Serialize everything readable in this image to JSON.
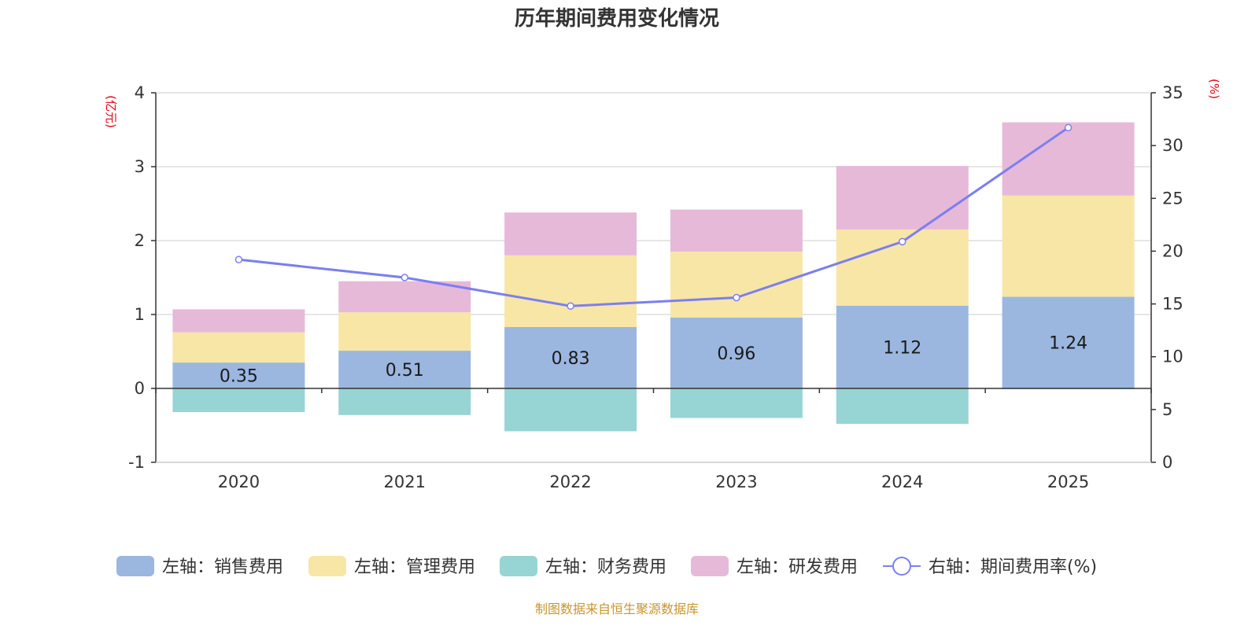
{
  "chart_data": {
    "type": "bar",
    "title": "历年期间费用变化情况",
    "categories": [
      "2020",
      "2021",
      "2022",
      "2023",
      "2024",
      "2025"
    ],
    "series": [
      {
        "name": "左轴：销售费用",
        "axis": "left",
        "kind": "stacked-bar",
        "color": "#9bb7e0",
        "values": [
          0.35,
          0.51,
          0.83,
          0.96,
          1.12,
          1.24
        ],
        "labels_shown": true
      },
      {
        "name": "左轴：管理费用",
        "axis": "left",
        "kind": "stacked-bar",
        "color": "#f7e6a6",
        "values": [
          0.41,
          0.52,
          0.97,
          0.89,
          1.03,
          1.37
        ]
      },
      {
        "name": "左轴：财务费用",
        "axis": "left",
        "kind": "stacked-bar",
        "color": "#97d4d4",
        "values": [
          -0.32,
          -0.36,
          -0.58,
          -0.4,
          -0.48,
          -0.01
        ]
      },
      {
        "name": "左轴：研发费用",
        "axis": "left",
        "kind": "stacked-bar",
        "color": "#e7b9d9",
        "values": [
          0.31,
          0.42,
          0.58,
          0.57,
          0.86,
          0.99
        ]
      },
      {
        "name": "右轴：期间费用率(%)",
        "axis": "right",
        "kind": "line",
        "color": "#7b7ff0",
        "values": [
          19.2,
          17.5,
          14.8,
          15.6,
          20.9,
          31.7
        ]
      }
    ],
    "left_axis": {
      "unit": "(亿元)",
      "min": -1,
      "max": 4,
      "ticks": [
        -1,
        0,
        1,
        2,
        3,
        4
      ]
    },
    "right_axis": {
      "unit": "(%)",
      "min": 0,
      "max": 35,
      "ticks": [
        0,
        5,
        10,
        15,
        20,
        25,
        30,
        35
      ]
    },
    "grid": true,
    "legend_position": "bottom",
    "source": "制图数据来自恒生聚源数据库"
  }
}
